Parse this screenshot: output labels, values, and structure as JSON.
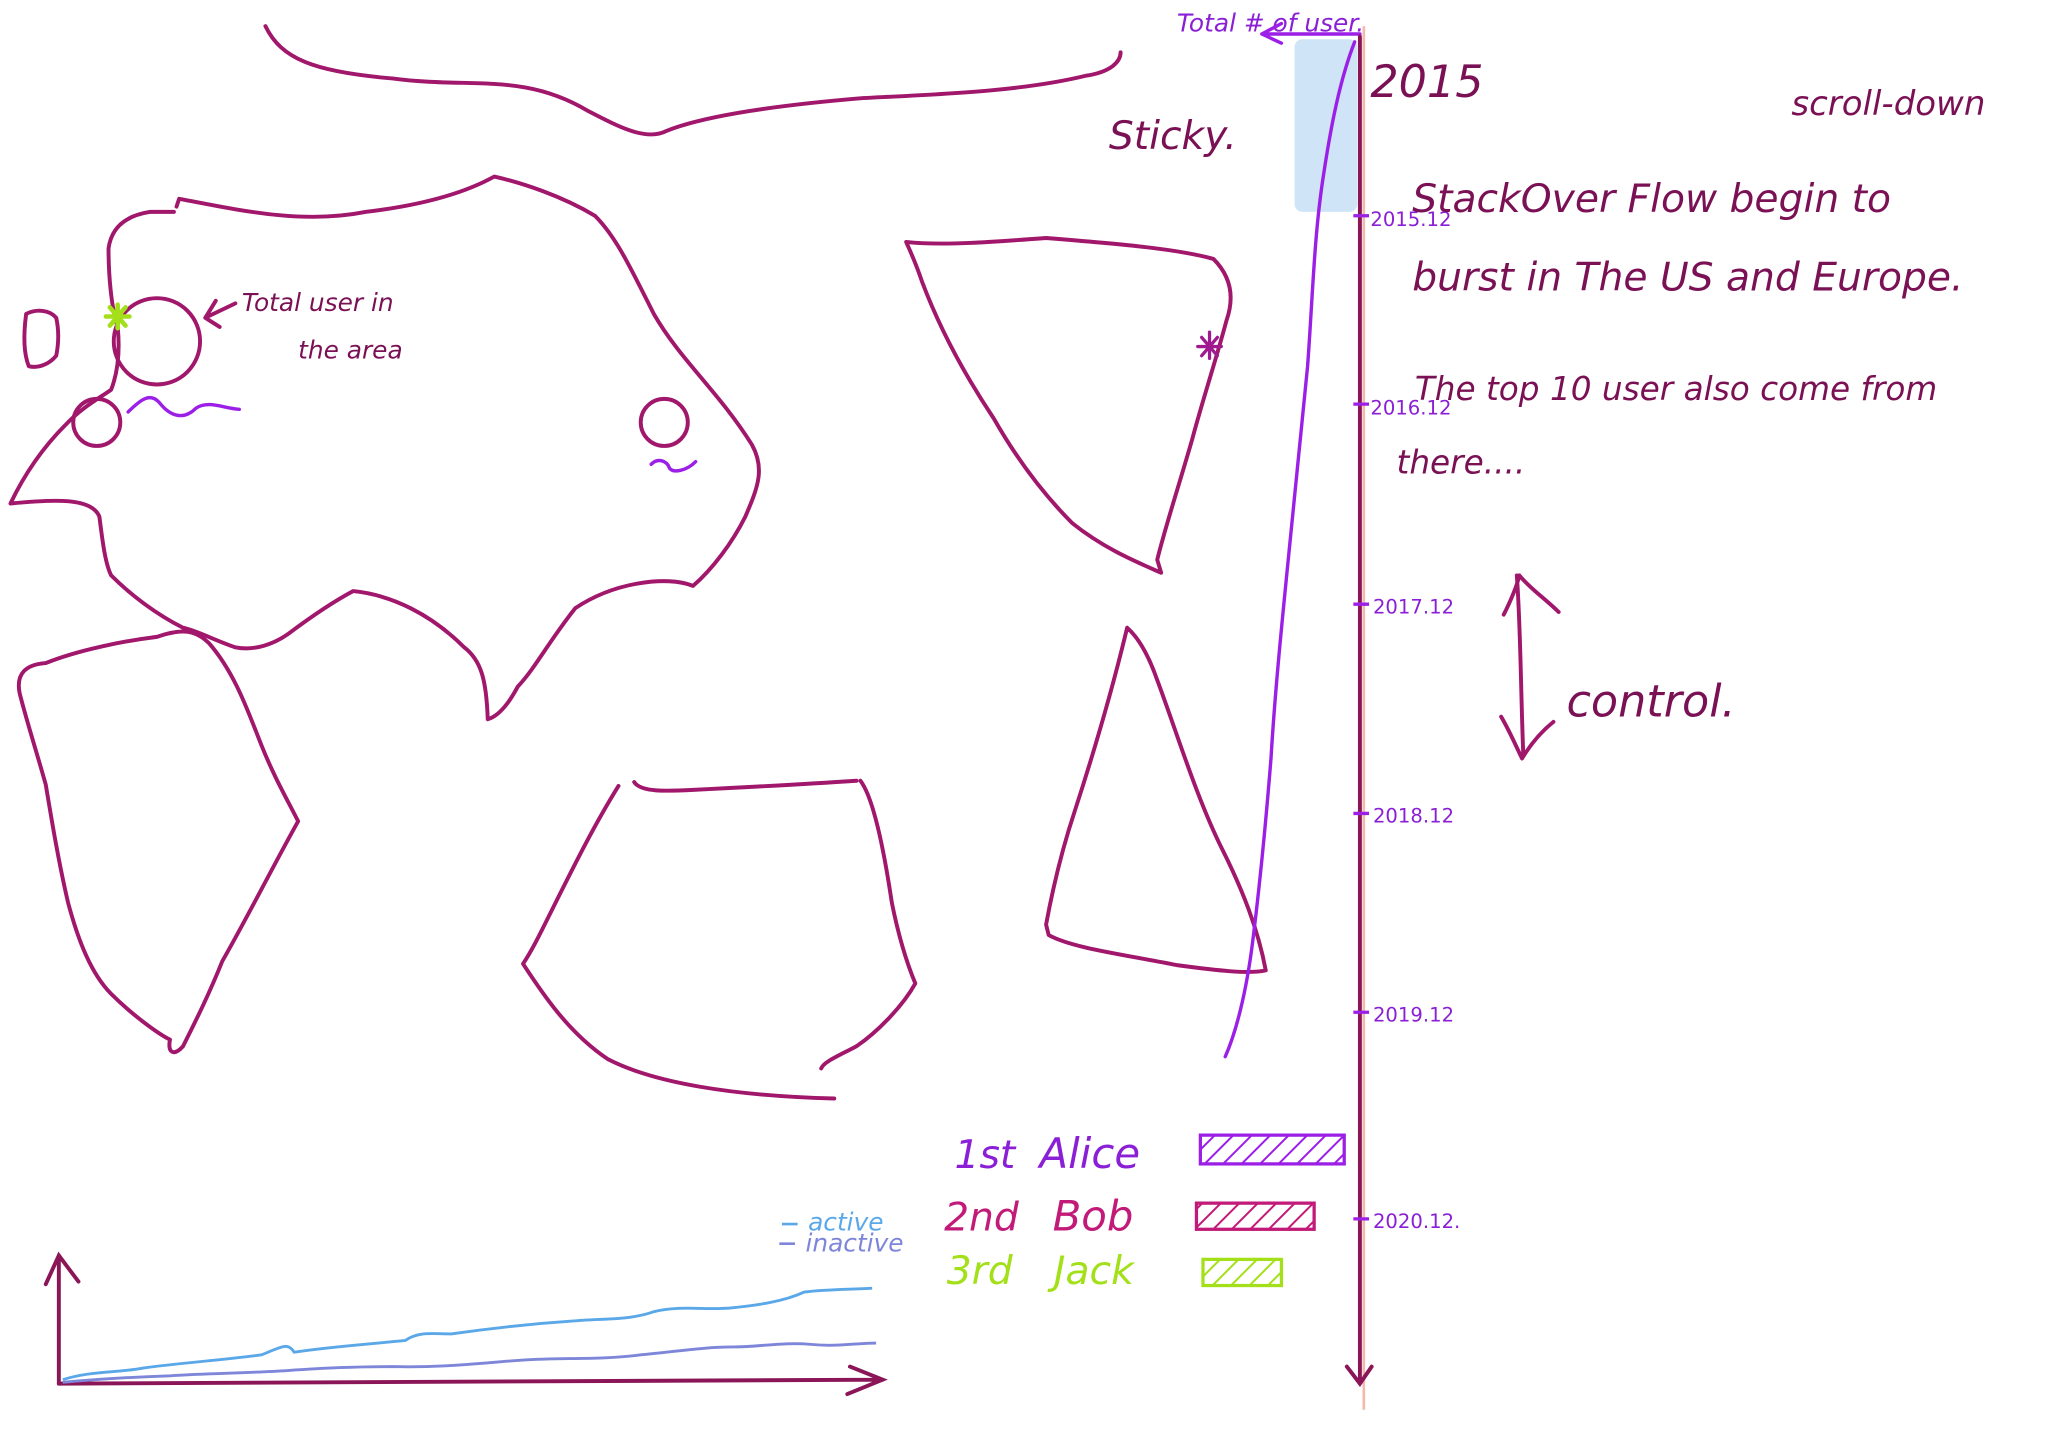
{
  "header": {
    "total_users_label": "Total # of user.",
    "current_year": "2015",
    "sticky_label": "Sticky.",
    "scroll_hint": "scroll-down"
  },
  "map": {
    "bubble_annotation_line1": "Total user in",
    "bubble_annotation_line2": "the area",
    "marker_color": "#a3e01a"
  },
  "timeline": {
    "ticks": [
      "2015.12",
      "2016.12",
      "2017.12",
      "2018.12",
      "2019.12",
      "2020.12."
    ],
    "control_label": "control."
  },
  "story": {
    "line1": "StackOver Flow begin to",
    "line2": "burst in The US and Europe.",
    "line3": "The top 10 user also come from",
    "line4": "there...."
  },
  "leaderboard": [
    {
      "rank": "1st",
      "name": "Alice",
      "color": "#9b1fe6",
      "fill": 1.0
    },
    {
      "rank": "2nd",
      "name": "Bob",
      "color": "#c21a78",
      "fill": 0.8
    },
    {
      "rank": "3rd",
      "name": "Jack",
      "color": "#a3e01a",
      "fill": 0.55
    }
  ],
  "activity_chart": {
    "legend_active": "active",
    "legend_inactive": "inactive",
    "active_color": "#5aa8e8",
    "inactive_color": "#7d86d8"
  },
  "colors": {
    "ink": "#a0176b",
    "accent_purple": "#9b1fe6",
    "axis": "#8a1557",
    "sticky_highlight": "#cfe4f7"
  }
}
